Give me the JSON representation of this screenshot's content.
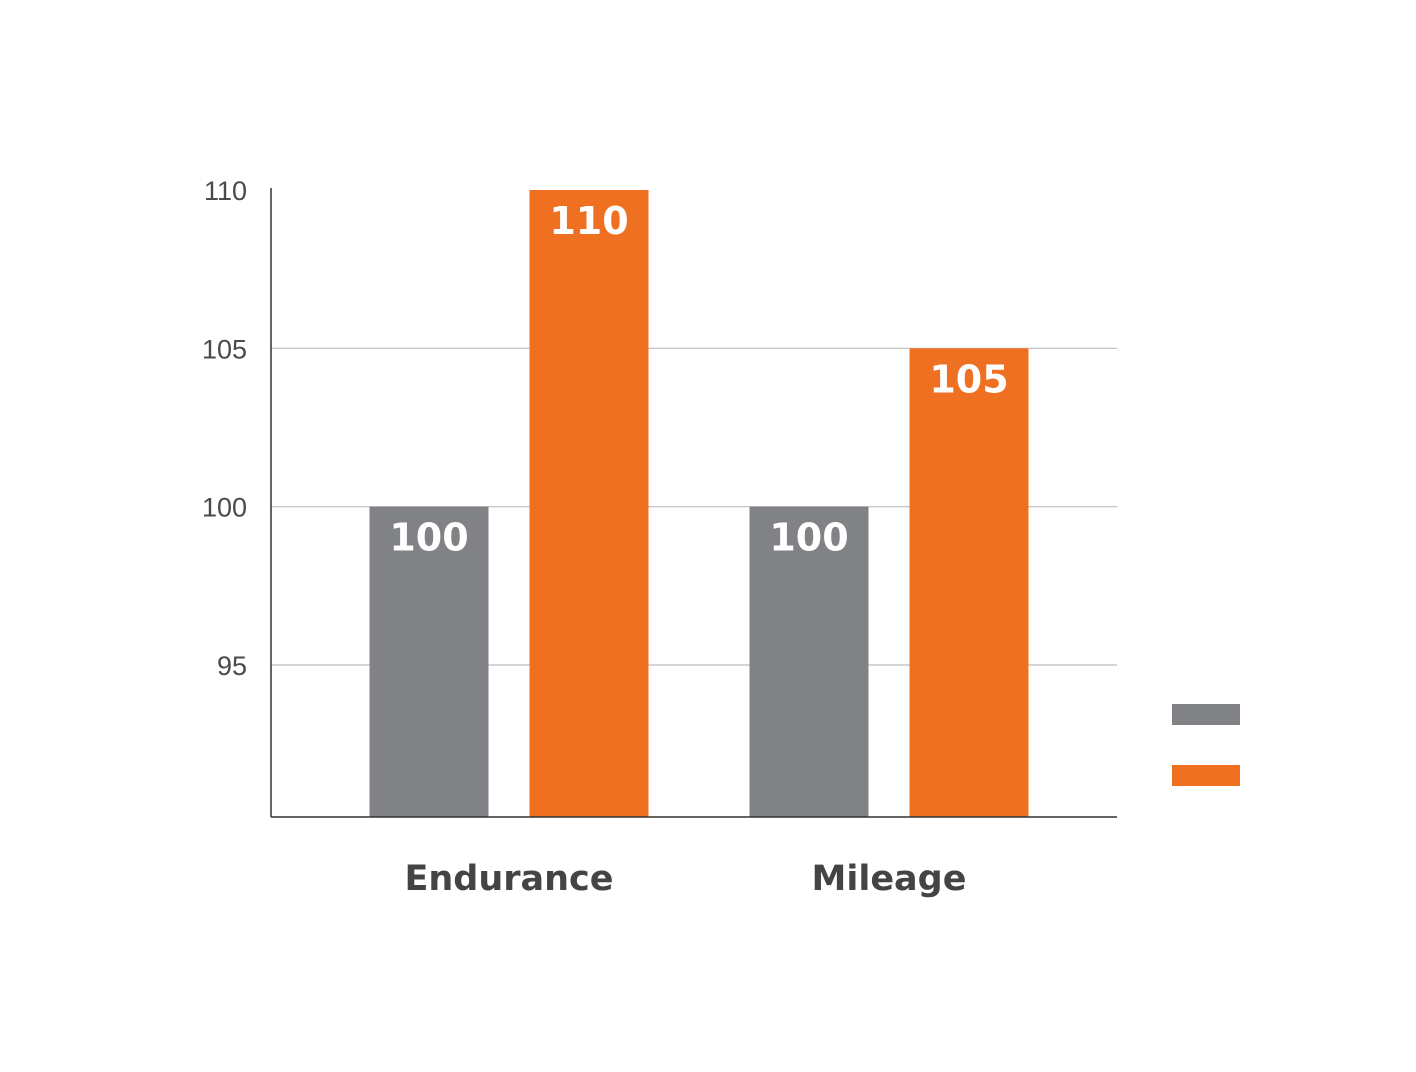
{
  "chart_data": {
    "type": "bar",
    "categories": [
      "Endurance",
      "Mileage"
    ],
    "series": [
      {
        "values": [
          100,
          100
        ],
        "color": "#808285"
      },
      {
        "values": [
          110,
          105
        ],
        "color": "#f07022"
      }
    ],
    "data_labels": [
      [
        "100",
        "100"
      ],
      [
        "110",
        "105"
      ]
    ],
    "y_ticks": [
      95,
      100,
      105,
      110
    ],
    "y_tick_labels": [
      "95",
      "100",
      "105",
      "110"
    ],
    "ylim": [
      90.2,
      110
    ],
    "grid": true,
    "legend_position": "right",
    "legend_text": [
      "",
      ""
    ],
    "title": "",
    "xlabel": "",
    "ylabel": ""
  }
}
